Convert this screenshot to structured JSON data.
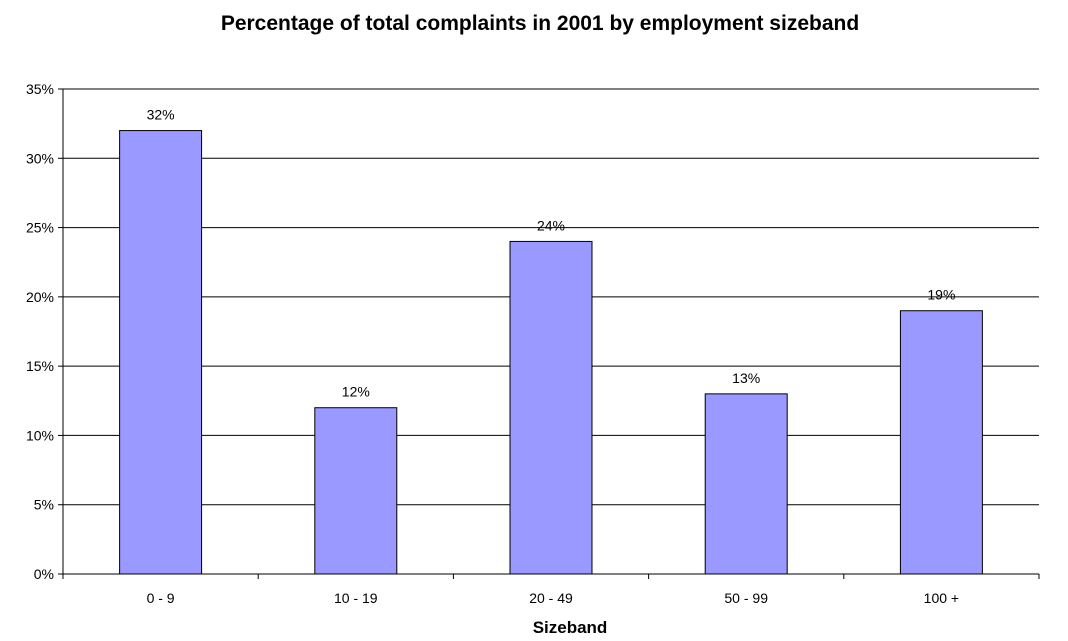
{
  "chart_data": {
    "type": "bar",
    "title": "Percentage of total complaints in 2001 by employment sizeband",
    "xlabel": "Sizeband",
    "ylabel": "",
    "categories": [
      "0 - 9",
      "10 - 19",
      "20 - 49",
      "50 - 99",
      "100 +"
    ],
    "values": [
      32,
      12,
      24,
      13,
      19
    ],
    "value_labels": [
      "32%",
      "12%",
      "24%",
      "13%",
      "19%"
    ],
    "ylim": [
      0,
      35
    ],
    "y_ticks": [
      0,
      5,
      10,
      15,
      20,
      25,
      30,
      35
    ],
    "y_tick_labels": [
      "0%",
      "5%",
      "10%",
      "15%",
      "20%",
      "25%",
      "30%",
      "35%"
    ],
    "grid": true,
    "legend": "none",
    "colors": {
      "bar_fill": "#9999ff",
      "bar_stroke": "#000000",
      "gridline": "#000000",
      "axis": "#000000"
    }
  }
}
